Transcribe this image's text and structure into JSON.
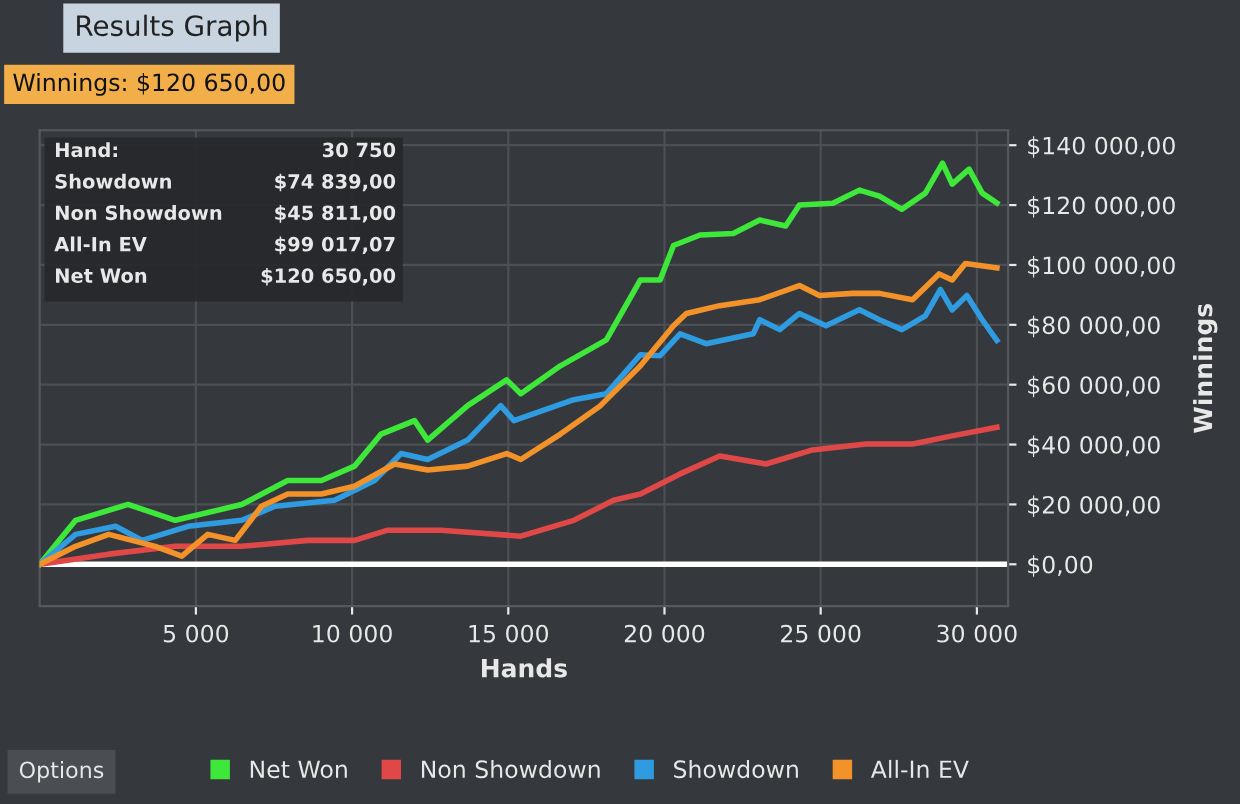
{
  "chart_data": {
    "type": "line",
    "title": "Results Graph",
    "subtitle": "Winnings: $120 650,00",
    "xlabel": "Hands",
    "ylabel": "Winnings",
    "annotations": [
      "Hand:",
      "30 750",
      "Showdown",
      "$74 839,00",
      "Non Showdown",
      "$45 811,00",
      "All-In EV",
      "$99 017,07",
      "Net Won",
      "$120 650,00",
      "Options"
    ],
    "xlim": [
      0,
      31000
    ],
    "ylim": [
      -14000,
      145000
    ],
    "xticks": [
      {
        "value": 5000,
        "label": "5 000"
      },
      {
        "value": 10000,
        "label": "10 000"
      },
      {
        "value": 15000,
        "label": "15 000"
      },
      {
        "value": 20000,
        "label": "20 000"
      },
      {
        "value": 25000,
        "label": "25 000"
      },
      {
        "value": 30000,
        "label": "30 000"
      }
    ],
    "yticks": [
      {
        "value": 0,
        "label": "$0,00"
      },
      {
        "value": 20000,
        "label": "$20 000,00"
      },
      {
        "value": 40000,
        "label": "$40 000,00"
      },
      {
        "value": 60000,
        "label": "$60 000,00"
      },
      {
        "value": 80000,
        "label": "$80 000,00"
      },
      {
        "value": 100000,
        "label": "$100 000,00"
      },
      {
        "value": 120000,
        "label": "$120 000,00"
      },
      {
        "value": 140000,
        "label": "$140 000,00"
      }
    ],
    "grid": true,
    "legend": "bottom",
    "marker": "none",
    "line_style": "solid",
    "ref_lines": [
      {
        "axis": "y",
        "value": 0,
        "color": "#ffffff"
      }
    ],
    "series": [
      {
        "name": "Net Won",
        "color": "#3ee83a",
        "x": [
          0,
          1150,
          2830,
          4340,
          6470,
          7940,
          9020,
          10080,
          10930,
          12000,
          12420,
          13700,
          14950,
          15400,
          16670,
          18140,
          19230,
          19860,
          20290,
          21140,
          22200,
          23050,
          23880,
          24320,
          25390,
          26240,
          26880,
          27600,
          28350,
          28900,
          29210,
          29750,
          30170,
          30640
        ],
        "values": [
          0,
          14700,
          20000,
          14700,
          20000,
          28000,
          28000,
          32800,
          43500,
          48000,
          41500,
          53000,
          61600,
          57000,
          66300,
          75000,
          95000,
          95000,
          106500,
          110000,
          110500,
          115000,
          113000,
          120000,
          120600,
          125000,
          123000,
          118600,
          124000,
          134000,
          127000,
          132000,
          124000,
          120700
        ]
      },
      {
        "name": "Non Showdown",
        "color": "#e04848",
        "x": [
          0,
          2210,
          4340,
          6470,
          8580,
          10080,
          11140,
          12850,
          15400,
          17100,
          18370,
          19230,
          20500,
          21770,
          23250,
          24740,
          26450,
          27940,
          29210,
          30640
        ],
        "values": [
          0,
          3400,
          6000,
          6000,
          8000,
          8000,
          11400,
          11400,
          9400,
          14700,
          21400,
          23500,
          30200,
          36200,
          33500,
          38200,
          40200,
          40200,
          42900,
          45800
        ]
      },
      {
        "name": "Showdown",
        "color": "#2f9be0",
        "x": [
          0,
          1150,
          2430,
          3280,
          4750,
          6470,
          7530,
          9440,
          10720,
          11570,
          12420,
          13700,
          14760,
          15180,
          17100,
          18140,
          19230,
          19860,
          20500,
          21330,
          22840,
          23050,
          23690,
          24320,
          25170,
          26240,
          26880,
          27600,
          28350,
          28830,
          29210,
          29680,
          30170,
          30640
        ],
        "values": [
          0,
          10000,
          12700,
          8000,
          12700,
          14700,
          19400,
          21400,
          28000,
          37000,
          35000,
          41500,
          53000,
          48000,
          55000,
          57000,
          70000,
          69700,
          77000,
          73700,
          77000,
          81700,
          78400,
          83800,
          79700,
          85000,
          81700,
          78400,
          83000,
          91800,
          85000,
          89800,
          81700,
          74800
        ]
      },
      {
        "name": "All-In EV",
        "color": "#f4922a",
        "x": [
          0,
          1150,
          2210,
          3700,
          4550,
          5380,
          6260,
          7100,
          7940,
          9020,
          10080,
          11360,
          12420,
          13700,
          14950,
          15400,
          16670,
          17950,
          19230,
          20290,
          20700,
          21770,
          23050,
          24320,
          24960,
          26020,
          26880,
          27940,
          28790,
          29210,
          29630,
          30640
        ],
        "values": [
          0,
          6000,
          10000,
          6000,
          2700,
          10000,
          8000,
          19400,
          23500,
          23500,
          26100,
          33500,
          31500,
          32800,
          37000,
          35000,
          43500,
          53000,
          66300,
          79700,
          83800,
          86400,
          88400,
          93100,
          89800,
          90500,
          90500,
          88400,
          97000,
          95000,
          100500,
          99000
        ]
      }
    ]
  }
}
